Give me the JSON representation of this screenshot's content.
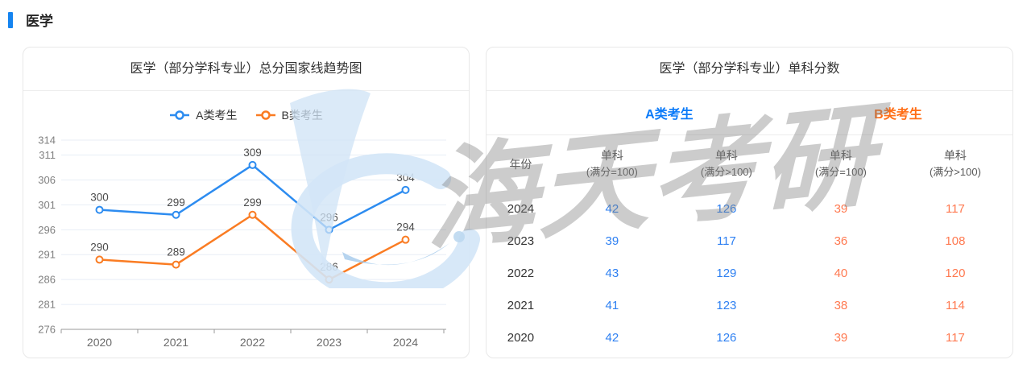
{
  "section": {
    "title": "医学"
  },
  "colors": {
    "accent": "#1584f0",
    "line_blue": "#2d8cf0",
    "line_orange": "#fa7c23",
    "header_blue": "#0c7bf9",
    "header_orange": "#ff6e16",
    "value_blue": "#2e80f2",
    "value_orange": "#ff7950",
    "grid": "#e8eef6",
    "axis": "#999999",
    "y_label": "#808080",
    "x_label": "#6b6b6b",
    "data_label": "#4c4c4c"
  },
  "chart_panel": {
    "title": "医学（部分学科专业）总分国家线趋势图"
  },
  "chart_data": {
    "type": "line",
    "title": "医学（部分学科专业）总分国家线趋势图",
    "categories": [
      "2020",
      "2021",
      "2022",
      "2023",
      "2024"
    ],
    "series": [
      {
        "name": "A类考生",
        "color": "#2d8cf0",
        "values": [
          300,
          299,
          309,
          296,
          304
        ]
      },
      {
        "name": "B类考生",
        "color": "#fa7c23",
        "values": [
          290,
          289,
          299,
          286,
          294
        ]
      }
    ],
    "xlabel": "",
    "ylabel": "",
    "ylim": [
      276,
      314
    ],
    "yticks": [
      276,
      281,
      286,
      291,
      296,
      301,
      306,
      311,
      314
    ],
    "grid": true,
    "legend_position": "top",
    "marker": "hollow-circle",
    "data_labels": true
  },
  "table_panel": {
    "title": "医学（部分学科专业）单科分数",
    "group_headers": [
      {
        "label": "A类考生",
        "color": "#0c7bf9"
      },
      {
        "label": "B类考生",
        "color": "#ff6e16"
      }
    ],
    "columns": [
      {
        "line1": "年份",
        "line2": ""
      },
      {
        "line1": "单科",
        "line2": "(满分=100)"
      },
      {
        "line1": "单科",
        "line2": "(满分>100)"
      },
      {
        "line1": "单科",
        "line2": "(满分=100)"
      },
      {
        "line1": "单科",
        "line2": "(满分>100)"
      }
    ],
    "rows": [
      {
        "year": "2024",
        "values": [
          "42",
          "126",
          "39",
          "117"
        ]
      },
      {
        "year": "2023",
        "values": [
          "39",
          "117",
          "36",
          "108"
        ]
      },
      {
        "year": "2022",
        "values": [
          "43",
          "129",
          "40",
          "120"
        ]
      },
      {
        "year": "2021",
        "values": [
          "41",
          "123",
          "38",
          "114"
        ]
      },
      {
        "year": "2020",
        "values": [
          "42",
          "126",
          "39",
          "117"
        ]
      }
    ]
  },
  "watermark": {
    "text": "海天考研",
    "logo": "haitian-sail-logo"
  }
}
